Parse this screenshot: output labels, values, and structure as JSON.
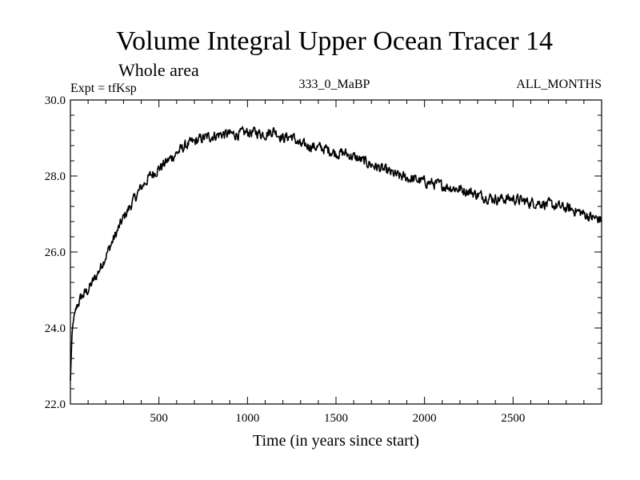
{
  "chart_data": {
    "type": "line",
    "title": "Volume Integral Upper Ocean Tracer 14",
    "subtitle": "Whole area",
    "expt_label": "Expt = tfKsp",
    "center_label": "333_0_MaBP",
    "right_label": "ALL_MONTHS",
    "xlabel": "Time (in years since start)",
    "ylabel": "",
    "xlim": [
      0,
      3000
    ],
    "ylim": [
      22.0,
      30.0
    ],
    "x_ticks": [
      500,
      1000,
      1500,
      2000,
      2500
    ],
    "x_tick_labels": [
      "500",
      "1000",
      "1500",
      "2000",
      "2500"
    ],
    "y_ticks": [
      22.0,
      24.0,
      26.0,
      28.0,
      30.0
    ],
    "y_tick_labels": [
      "22.0",
      "24.0",
      "26.0",
      "28.0",
      "30.0"
    ],
    "series": [
      {
        "name": "Tracer 14",
        "color": "#000000",
        "x": [
          0,
          5,
          10,
          20,
          40,
          60,
          100,
          150,
          200,
          250,
          300,
          350,
          400,
          450,
          500,
          550,
          600,
          650,
          700,
          750,
          800,
          850,
          900,
          950,
          1000,
          1050,
          1100,
          1150,
          1200,
          1250,
          1300,
          1350,
          1400,
          1450,
          1500,
          1550,
          1600,
          1650,
          1700,
          1750,
          1800,
          1850,
          1900,
          1950,
          2000,
          2050,
          2100,
          2150,
          2200,
          2250,
          2300,
          2350,
          2400,
          2450,
          2500,
          2550,
          2600,
          2650,
          2700,
          2750,
          2800,
          2850,
          2900,
          2950,
          3000
        ],
        "values": [
          22.6,
          23.3,
          23.9,
          24.3,
          24.6,
          24.8,
          25.0,
          25.4,
          25.9,
          26.4,
          26.9,
          27.3,
          27.7,
          28.0,
          28.2,
          28.4,
          28.6,
          28.8,
          28.9,
          29.0,
          29.05,
          29.1,
          29.1,
          29.1,
          29.15,
          29.15,
          29.1,
          29.2,
          29.0,
          29.05,
          28.8,
          28.8,
          28.75,
          28.7,
          28.6,
          28.6,
          28.5,
          28.4,
          28.3,
          28.2,
          28.1,
          28.0,
          27.95,
          27.9,
          27.85,
          27.8,
          27.75,
          27.7,
          27.65,
          27.6,
          27.5,
          27.45,
          27.4,
          27.4,
          27.4,
          27.35,
          27.3,
          27.3,
          27.25,
          27.2,
          27.15,
          27.1,
          27.0,
          26.9,
          26.85
        ],
        "noise_amplitude": 0.22
      }
    ]
  }
}
